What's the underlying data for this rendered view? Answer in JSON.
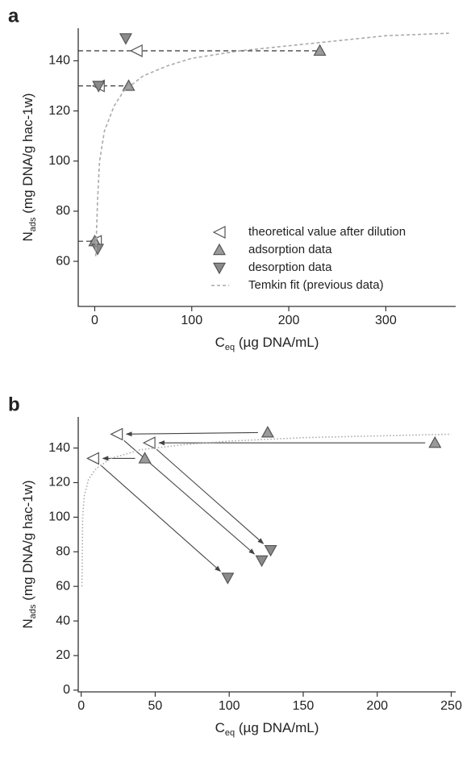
{
  "chart_data": [
    {
      "type": "scatter",
      "panel_label": "a",
      "x_label": {
        "symbol": "C",
        "sub": "eq",
        "unit": " (µg DNA/mL)"
      },
      "y_label": {
        "symbol": "N",
        "sub": "ads",
        "unit": " (mg DNA/g hac-1w)"
      },
      "xlim": [
        -17,
        372
      ],
      "ylim": [
        42,
        153
      ],
      "xticks": [
        0,
        100,
        200,
        300
      ],
      "yticks": [
        60,
        80,
        100,
        120,
        140
      ],
      "links": "dashed",
      "legend": "lower right",
      "series": [
        {
          "name": "theoretical value after dilution",
          "marker": "left",
          "color": "#ffffff",
          "x": [
            43,
            4,
            1
          ],
          "values": [
            144,
            130,
            68
          ]
        },
        {
          "name": "adsorption data",
          "marker": "up",
          "color": "#9a9a9a",
          "x": [
            232,
            35,
            0
          ],
          "values": [
            144,
            130,
            68
          ]
        },
        {
          "name": "desorption data",
          "marker": "down",
          "color": "#8a8a8a",
          "x": [
            32,
            4,
            3
          ],
          "values": [
            149,
            130,
            65
          ]
        },
        {
          "name": "Temkin fit (previous data)",
          "marker": "line",
          "style": "dashed",
          "color": "#aaaaaa",
          "x": [
            1,
            3,
            5,
            10,
            20,
            30,
            50,
            75,
            100,
            150,
            200,
            250,
            300,
            365
          ],
          "values": [
            62,
            85,
            100,
            112,
            122,
            128,
            134,
            138,
            141,
            144,
            146,
            148,
            150,
            151
          ]
        }
      ]
    },
    {
      "type": "scatter",
      "panel_label": "b",
      "x_label": {
        "symbol": "C",
        "sub": "eq",
        "unit": " (µg DNA/mL)"
      },
      "y_label": {
        "symbol": "N",
        "sub": "ads",
        "unit": " (mg DNA/g hac-1w)"
      },
      "xlim": [
        -2,
        253
      ],
      "ylim": [
        -1,
        158
      ],
      "xticks": [
        0,
        50,
        100,
        150,
        200,
        250
      ],
      "yticks": [
        0,
        20,
        40,
        60,
        80,
        100,
        120,
        140
      ],
      "links": "arrows",
      "series": [
        {
          "marker": "left",
          "color": "#ffffff",
          "x": [
            24,
            46,
            8
          ],
          "values": [
            148,
            143,
            134
          ]
        },
        {
          "marker": "up",
          "color": "#9a9a9a",
          "x": [
            126,
            239,
            43
          ],
          "values": [
            149,
            143,
            134
          ]
        },
        {
          "marker": "down",
          "color": "#8a8a8a",
          "x": [
            122,
            128,
            99
          ],
          "values": [
            75,
            81,
            65
          ]
        },
        {
          "marker": "line",
          "style": "dotted",
          "color": "#aaaaaa",
          "x": [
            0.5,
            1,
            2,
            5,
            10,
            20,
            40,
            70,
            100,
            150,
            200,
            250
          ],
          "values": [
            60,
            100,
            112,
            122,
            128,
            134,
            139,
            142,
            144,
            146,
            147,
            148
          ]
        }
      ]
    }
  ]
}
